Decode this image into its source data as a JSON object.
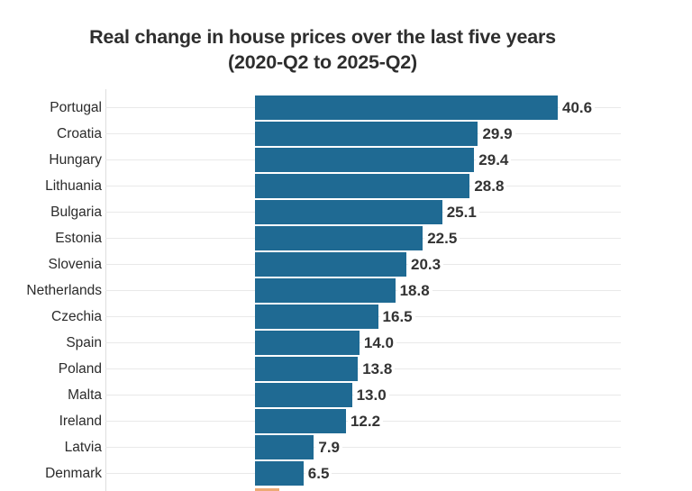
{
  "title": {
    "line1": "Real change in house prices over the last five years",
    "line2": "(2020-Q2 to 2025-Q2)"
  },
  "chart_data": {
    "type": "bar",
    "orientation": "horizontal",
    "title": "Real change in house prices over the last five years (2020-Q2 to 2025-Q2)",
    "categories": [
      "Portugal",
      "Croatia",
      "Hungary",
      "Lithuania",
      "Bulgaria",
      "Estonia",
      "Slovenia",
      "Netherlands",
      "Czechia",
      "Spain",
      "Poland",
      "Malta",
      "Ireland",
      "Latvia",
      "Denmark"
    ],
    "values": [
      40.6,
      29.9,
      29.4,
      28.8,
      25.1,
      22.5,
      20.3,
      18.8,
      16.5,
      14.0,
      13.8,
      13.0,
      12.2,
      7.9,
      6.5
    ],
    "value_labels": [
      "40.6",
      "29.9",
      "29.4",
      "28.8",
      "25.1",
      "22.5",
      "20.3",
      "18.8",
      "16.5",
      "14.0",
      "13.8",
      "13.0",
      "12.2",
      "7.9",
      "6.5"
    ],
    "xlim": [
      -20,
      49
    ],
    "grid": "light horizontal gridline per row, behind bars",
    "legend": "none",
    "axis_tick_labels": "none visible (chart cropped at bottom)",
    "bar_color": "#1f6a93",
    "next_row_partial_bar": {
      "note": "top sliver of a 16th bar, cut off by bottom edge of image",
      "color": "#edaa74",
      "approx_value": 3.3
    }
  },
  "colors": {
    "background": "#ffffff",
    "bar": "#1f6a93",
    "highlight_partial_bar": "#edaa74",
    "gridline": "#e9e9e9",
    "axis_line": "#dedede",
    "title_text": "#2e2e2e",
    "label_text": "#2b2b2b",
    "value_text": "#333333"
  }
}
